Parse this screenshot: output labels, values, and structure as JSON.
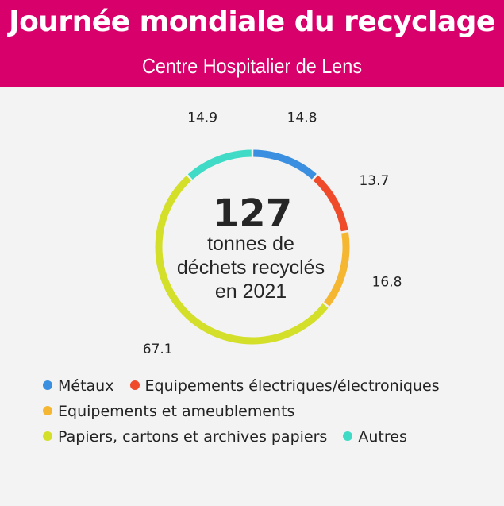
{
  "header": {
    "title": "Journée mondiale du recyclage",
    "subtitle": "Centre Hospitalier de Lens"
  },
  "center": {
    "total": "127",
    "line1": "tonnes de",
    "line2": "déchets recyclés",
    "line3": "en 2021"
  },
  "chart_data": {
    "type": "pie",
    "variant": "donut",
    "categories": [
      "Métaux",
      "Equipements électriques/électroniques",
      "Equipements et ameublements",
      "Papiers, cartons et archives papiers",
      "Autres"
    ],
    "values": [
      14.8,
      13.7,
      16.8,
      67.1,
      14.9
    ],
    "labels": [
      "14.8",
      "13.7",
      "16.8",
      "67.1",
      "14.9"
    ],
    "colors": [
      "#3a8fe0",
      "#ef4b2b",
      "#f5b731",
      "#d4df2a",
      "#3fdbc6"
    ],
    "legend_position": "bottom"
  }
}
